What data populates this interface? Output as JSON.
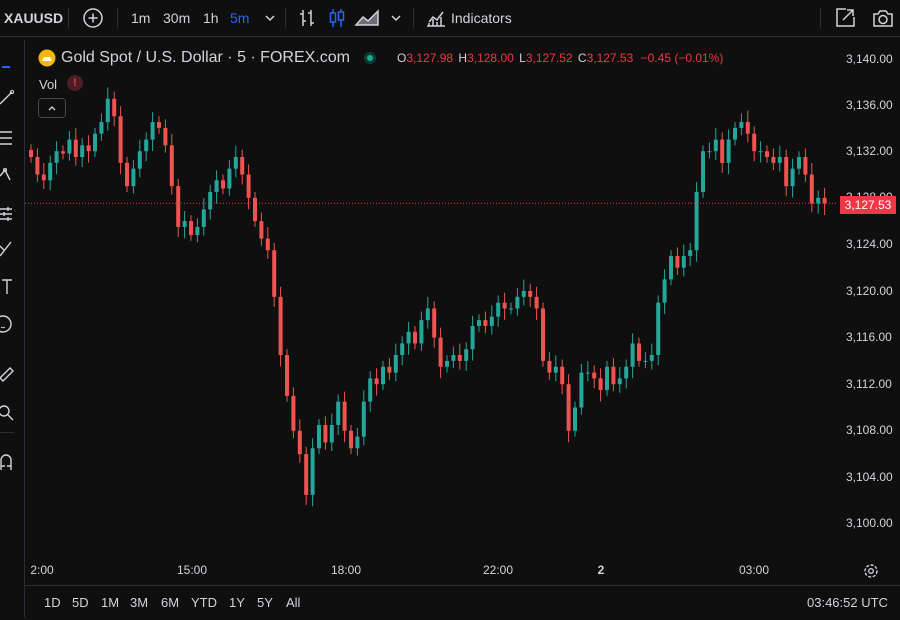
{
  "toolbar": {
    "symbol": "XAUUSD",
    "intervals": [
      "1m",
      "30m",
      "1h",
      "5m"
    ],
    "active_interval": "5m",
    "indicators_label": "Indicators",
    "icons": [
      "add-symbol-icon",
      "chevron-down-icon",
      "bar-chart-icon",
      "candles-icon",
      "area-icon",
      "chevron-down-icon",
      "indicators-icon",
      "snapshot-frame-icon",
      "camera-icon"
    ]
  },
  "legend": {
    "title": "Gold Spot / U.S. Dollar · 5 · FOREX.com",
    "vol_label": "Vol",
    "open_key": "O",
    "open": "3,127.98",
    "high_key": "H",
    "high": "3,128.00",
    "low_key": "L",
    "low": "3,127.52",
    "close_key": "C",
    "close": "3,127.53",
    "change": "−0.45 (−0.01%)"
  },
  "colors": {
    "up": "#26a69a",
    "down": "#ef5350",
    "last_price": "#f23645",
    "background": "#0f0f0f",
    "text": "#d1d4dc"
  },
  "chart_data": {
    "type": "candlestick",
    "y_ticks": [
      "3,140.00",
      "3,136.00",
      "3,132.00",
      "3,128.00",
      "3,124.00",
      "3,120.00",
      "3,116.00",
      "3,112.00",
      "3,108.00",
      "3,104.00",
      "3,100.00"
    ],
    "ylim": [
      3099,
      3141
    ],
    "x_ticks": [
      "2:00",
      "15:00",
      "18:00",
      "22:00",
      "2",
      "03:00"
    ],
    "last_price": "3,127.53",
    "last_price_value": 3127.53,
    "candles_close": [
      3131.5,
      3130.0,
      3129.5,
      3131.0,
      3132.0,
      3131.8,
      3133.0,
      3131.5,
      3132.5,
      3132.0,
      3133.5,
      3134.5,
      3136.5,
      3135.0,
      3131.0,
      3129.0,
      3130.5,
      3132.0,
      3133.0,
      3134.5,
      3134.0,
      3132.5,
      3129.0,
      3125.5,
      3126.0,
      3124.8,
      3125.5,
      3127.0,
      3128.5,
      3129.5,
      3128.8,
      3130.5,
      3131.5,
      3130.0,
      3128.0,
      3126.0,
      3124.5,
      3123.5,
      3119.5,
      3114.5,
      3111.0,
      3108.0,
      3106.0,
      3102.5,
      3106.5,
      3108.5,
      3107.0,
      3108.5,
      3110.5,
      3108.0,
      3106.5,
      3107.5,
      3110.5,
      3112.5,
      3112.0,
      3113.5,
      3113.0,
      3114.5,
      3115.5,
      3116.5,
      3115.5,
      3117.5,
      3118.5,
      3116.0,
      3113.5,
      3114.0,
      3114.5,
      3114.0,
      3115.0,
      3117.0,
      3117.5,
      3117.0,
      3117.8,
      3119.0,
      3118.5,
      3118.5,
      3119.5,
      3120.0,
      3119.5,
      3118.5,
      3114.0,
      3113.0,
      3113.5,
      3112.0,
      3108.0,
      3110.0,
      3113.0,
      3113.0,
      3112.5,
      3111.5,
      3113.5,
      3112.0,
      3112.5,
      3113.5,
      3115.5,
      3114.0,
      3114.0,
      3114.5,
      3119.0,
      3121.0,
      3123.0,
      3122.0,
      3123.0,
      3123.5,
      3128.5,
      3132.0,
      3132.0,
      3133.0,
      3131.0,
      3133.0,
      3134.0,
      3134.5,
      3133.5,
      3132.0,
      3132.0,
      3131.5,
      3131.0,
      3131.5,
      3129.0,
      3130.5,
      3131.5,
      3130.0,
      3127.5,
      3128.0,
      3127.5
    ]
  },
  "bottom": {
    "ranges": [
      "1D",
      "5D",
      "1M",
      "3M",
      "6M",
      "YTD",
      "1Y",
      "5Y",
      "All"
    ],
    "time": "03:46:52 UTC"
  }
}
